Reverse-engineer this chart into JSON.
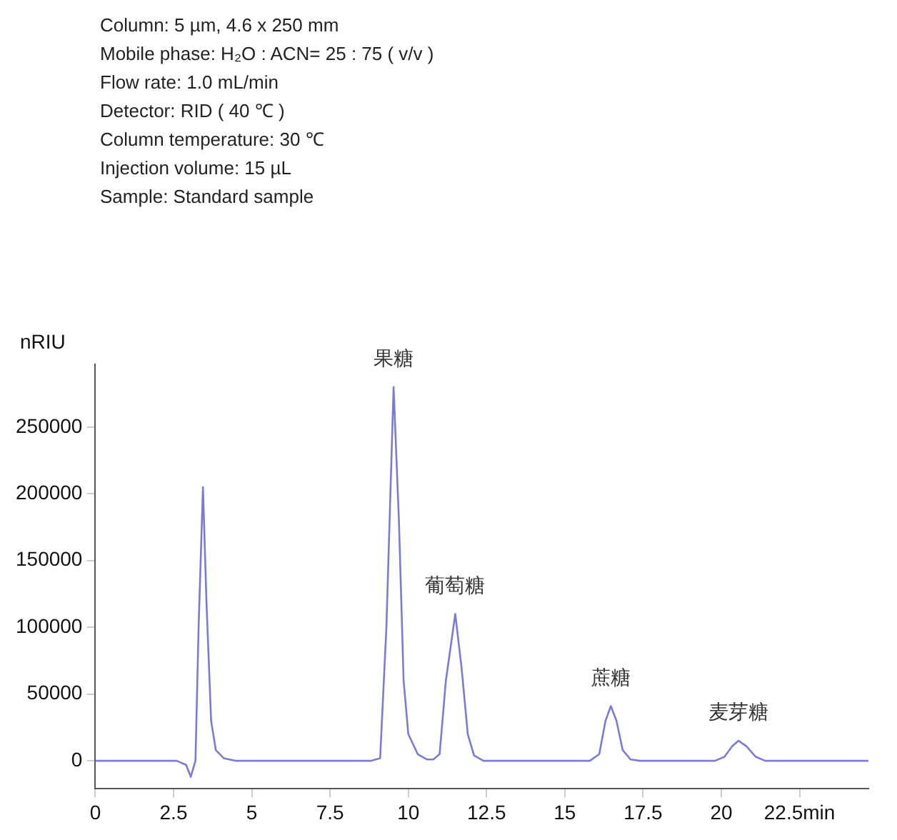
{
  "chart_data": {
    "type": "line",
    "ylabel": "nRIU",
    "annotations": [
      "Column: 5 µm, 4.6 x 250 mm",
      "Mobile phase: H₂O : ACN= 25 : 75 ( v/v )",
      "Flow rate: 1.0 mL/min",
      "Detector: RID ( 40 ℃ )",
      "Column temperature: 30 ℃",
      "Injection volume: 15 µL",
      "Sample: Standard sample",
      {
        "text": "果糖",
        "x": 9.53,
        "y": 280000
      },
      {
        "text": "葡萄糖",
        "x": 11.5,
        "y": 110000
      },
      {
        "text": "蔗糖",
        "x": 16.47,
        "y": 41000
      },
      {
        "text": "麦芽糖",
        "x": 20.55,
        "y": 15000
      }
    ],
    "series": [
      {
        "color": "#7b7bd6",
        "x": [
          0,
          2.6,
          2.9,
          3.05,
          3.2,
          3.3,
          3.44,
          3.55,
          3.7,
          3.85,
          4.1,
          4.5,
          8.8,
          9.1,
          9.3,
          9.53,
          9.7,
          9.85,
          10.0,
          10.3,
          10.6,
          10.8,
          11.0,
          11.2,
          11.5,
          11.7,
          11.9,
          12.1,
          12.4,
          15.8,
          16.1,
          16.3,
          16.47,
          16.65,
          16.85,
          17.1,
          17.4,
          19.8,
          20.1,
          20.35,
          20.55,
          20.8,
          21.1,
          21.4,
          24.7
        ],
        "values": [
          0,
          0,
          -3000,
          -12000,
          0,
          100000,
          205000,
          120000,
          30000,
          8000,
          2000,
          0,
          0,
          2000,
          100000,
          280000,
          180000,
          60000,
          20000,
          5000,
          1000,
          1000,
          5000,
          60000,
          110000,
          70000,
          20000,
          4000,
          0,
          0,
          5000,
          30000,
          41000,
          30000,
          8000,
          1000,
          0,
          0,
          3000,
          11000,
          15000,
          11000,
          3000,
          0,
          0
        ]
      }
    ],
    "xlim": [
      0,
      24.7
    ],
    "xticks": [
      0,
      2.5,
      5,
      7.5,
      10,
      12.5,
      15,
      17.5,
      20,
      {
        "value": 22.5,
        "label": "22.5min"
      }
    ],
    "ylim": [
      -21000,
      297000
    ],
    "yticks": [
      0,
      50000,
      100000,
      150000,
      200000,
      250000
    ],
    "grid": false,
    "legend": false,
    "marker": "none",
    "line_style": "solid"
  }
}
